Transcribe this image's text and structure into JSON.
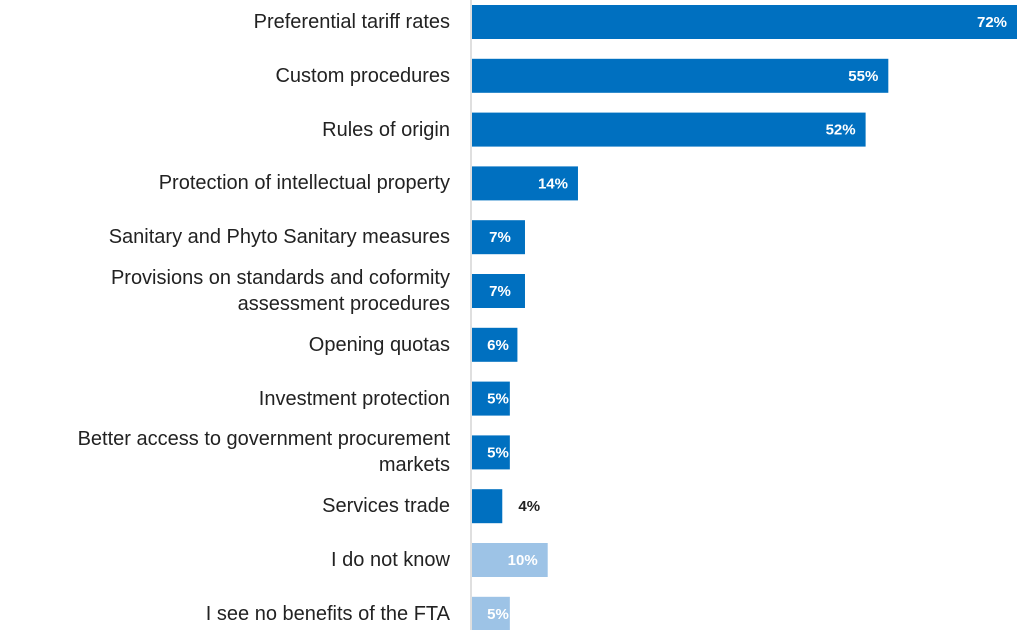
{
  "chart_data": {
    "type": "bar",
    "orientation": "horizontal",
    "categories": [
      "Preferential tariff rates",
      "Custom procedures",
      "Rules of origin",
      "Protection of intellectual property",
      "Sanitary and Phyto Sanitary measures",
      "Provisions on standards and coformity\nassessment procedures",
      "Opening quotas",
      "Investment protection",
      "Better access to government procurement\nmarkets",
      "Services trade",
      "I do not know",
      "I see no benefits of the FTA"
    ],
    "values": [
      72,
      55,
      52,
      14,
      7,
      7,
      6,
      5,
      5,
      4,
      10,
      5
    ],
    "value_labels": [
      "72%",
      "55%",
      "52%",
      "14%",
      "7%",
      "7%",
      "6%",
      "5%",
      "5%",
      "4%",
      "10%",
      "5%"
    ],
    "colors": [
      "#0070c0",
      "#0070c0",
      "#0070c0",
      "#0070c0",
      "#0070c0",
      "#0070c0",
      "#0070c0",
      "#0070c0",
      "#0070c0",
      "#0070c0",
      "#9dc3e6",
      "#9dc3e6"
    ]
  }
}
